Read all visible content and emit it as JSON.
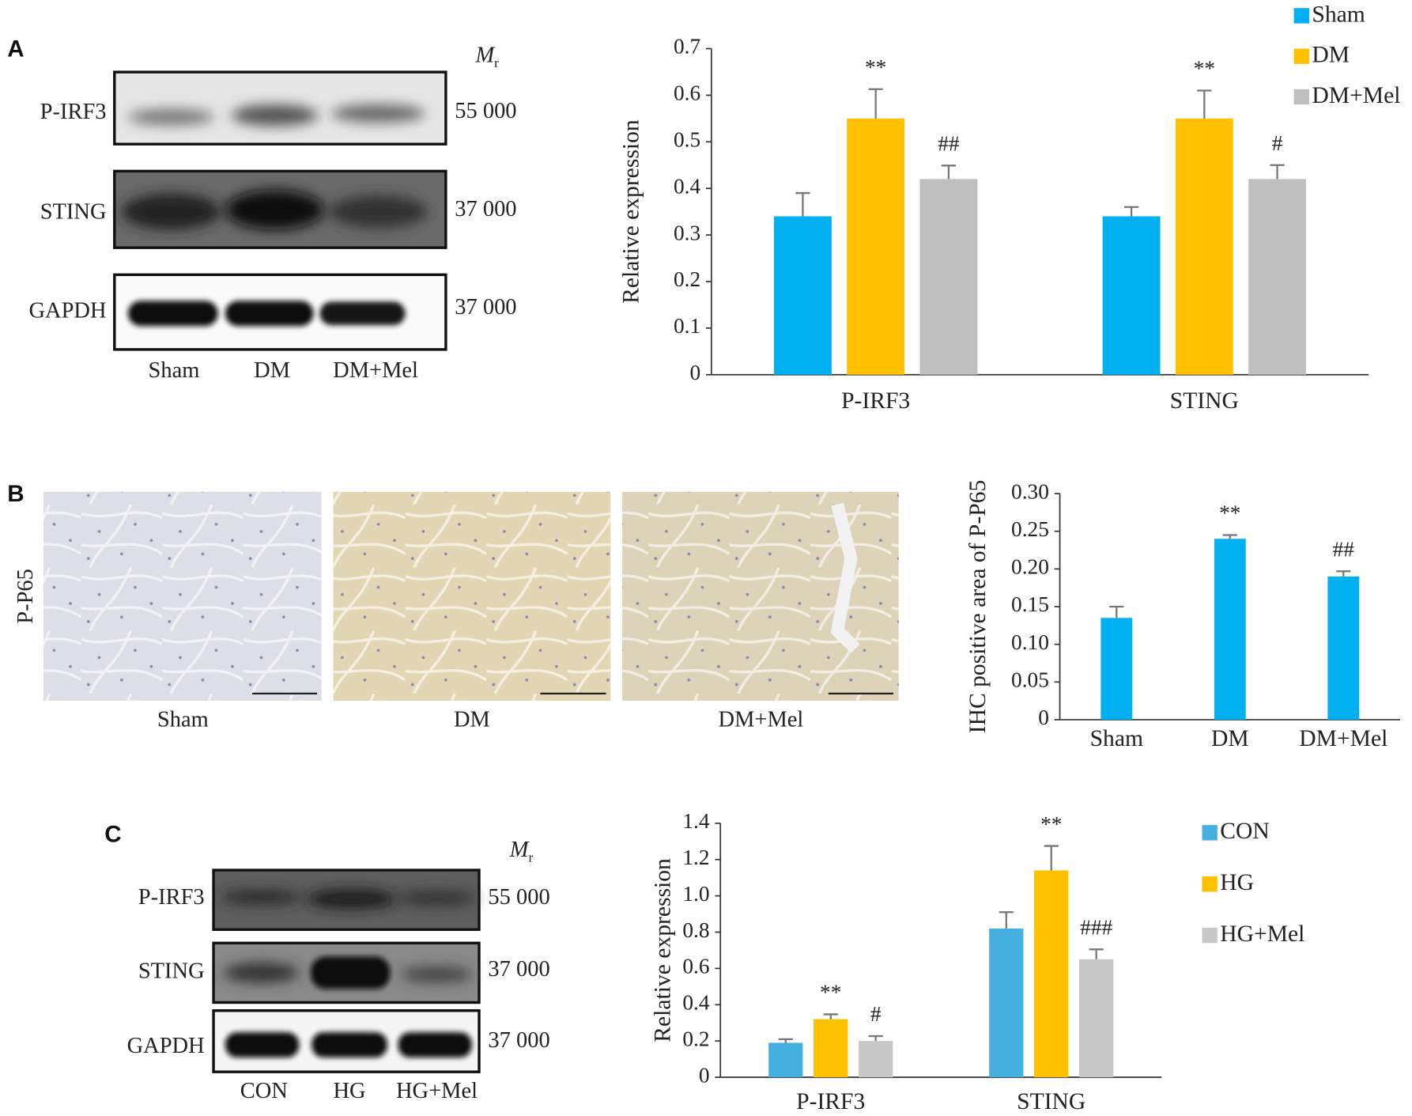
{
  "panel_labels": [
    "A",
    "B",
    "C"
  ],
  "blot_a": {
    "mr_symbol": "M",
    "mr_subscript": "r",
    "rows": [
      {
        "label": "P-IRF3",
        "mr": "55 000"
      },
      {
        "label": "STING",
        "mr": "37 000"
      },
      {
        "label": "GAPDH",
        "mr": "37 000"
      }
    ],
    "lanes": [
      "Sham",
      "DM",
      "DM+Mel"
    ]
  },
  "ihc_b": {
    "row_label": "P-P65",
    "images": [
      "Sham",
      "DM",
      "DM+Mel"
    ]
  },
  "blot_c": {
    "mr_symbol": "M",
    "mr_subscript": "r",
    "rows": [
      {
        "label": "P-IRF3",
        "mr": "55 000"
      },
      {
        "label": "STING",
        "mr": "37 000"
      },
      {
        "label": "GAPDH",
        "mr": "37 000"
      }
    ],
    "lanes": [
      "CON",
      "HG",
      "HG+Mel"
    ]
  },
  "chart_data": [
    {
      "type": "bar",
      "ylabel": "Relative expression",
      "categories": [
        "P-IRF3",
        "STING"
      ],
      "series": [
        {
          "name": "Sham",
          "color": "#00b0f0",
          "values": [
            0.34,
            0.34
          ],
          "errors": [
            0.05,
            0.02
          ]
        },
        {
          "name": "DM",
          "color": "#ffc000",
          "values": [
            0.55,
            0.55
          ],
          "errors": [
            0.063,
            0.06
          ],
          "labels": [
            "**",
            "**"
          ]
        },
        {
          "name": "DM+Mel",
          "color": "#bfbfbf",
          "values": [
            0.42,
            0.42
          ],
          "errors": [
            0.029,
            0.03
          ],
          "labels": [
            "##",
            "#"
          ]
        }
      ],
      "ylim": [
        0,
        0.7
      ],
      "yticks": [
        0,
        0.1,
        0.2,
        0.3,
        0.4,
        0.5,
        0.6,
        0.7
      ],
      "legend": "top-right"
    },
    {
      "type": "bar",
      "ylabel": "IHC positive area of P-P65",
      "categories": [
        "Sham",
        "DM",
        "DM+Mel"
      ],
      "color": "#00b0f0",
      "values": [
        0.135,
        0.24,
        0.19
      ],
      "errors": [
        0.015,
        0.005,
        0.007
      ],
      "labels": [
        null,
        "**",
        "##"
      ],
      "ylim": [
        0,
        0.3
      ],
      "yticks": [
        0,
        {
          "value": 0.05,
          "label": "0.05"
        },
        {
          "value": 0.1,
          "label": "0.10"
        },
        {
          "value": 0.15,
          "label": "0.15"
        },
        {
          "value": 0.2,
          "label": "0.20"
        },
        {
          "value": 0.25,
          "label": "0.25"
        },
        {
          "value": 0.3,
          "label": "0.30"
        }
      ]
    },
    {
      "type": "bar",
      "ylabel": "Relative expression",
      "categories": [
        "P-IRF3",
        "STING"
      ],
      "series": [
        {
          "name": "CON",
          "color": "#45b0e0",
          "values": [
            0.19,
            0.82
          ],
          "errors": [
            0.02,
            0.09
          ]
        },
        {
          "name": "HG",
          "color": "#ffc000",
          "values": [
            0.32,
            1.14
          ],
          "errors": [
            0.027,
            0.135
          ],
          "labels": [
            "**",
            "**"
          ]
        },
        {
          "name": "HG+Mel",
          "color": "#c8c8c8",
          "values": [
            0.2,
            0.65
          ],
          "errors": [
            0.027,
            0.055
          ],
          "labels": [
            "#",
            "###"
          ]
        }
      ],
      "ylim": [
        0,
        1.4
      ],
      "yticks": [
        0,
        0.2,
        0.4,
        0.6,
        0.8,
        {
          "value": 1,
          "label": "1.0"
        },
        1.2,
        1.4
      ],
      "legend": "right"
    }
  ]
}
